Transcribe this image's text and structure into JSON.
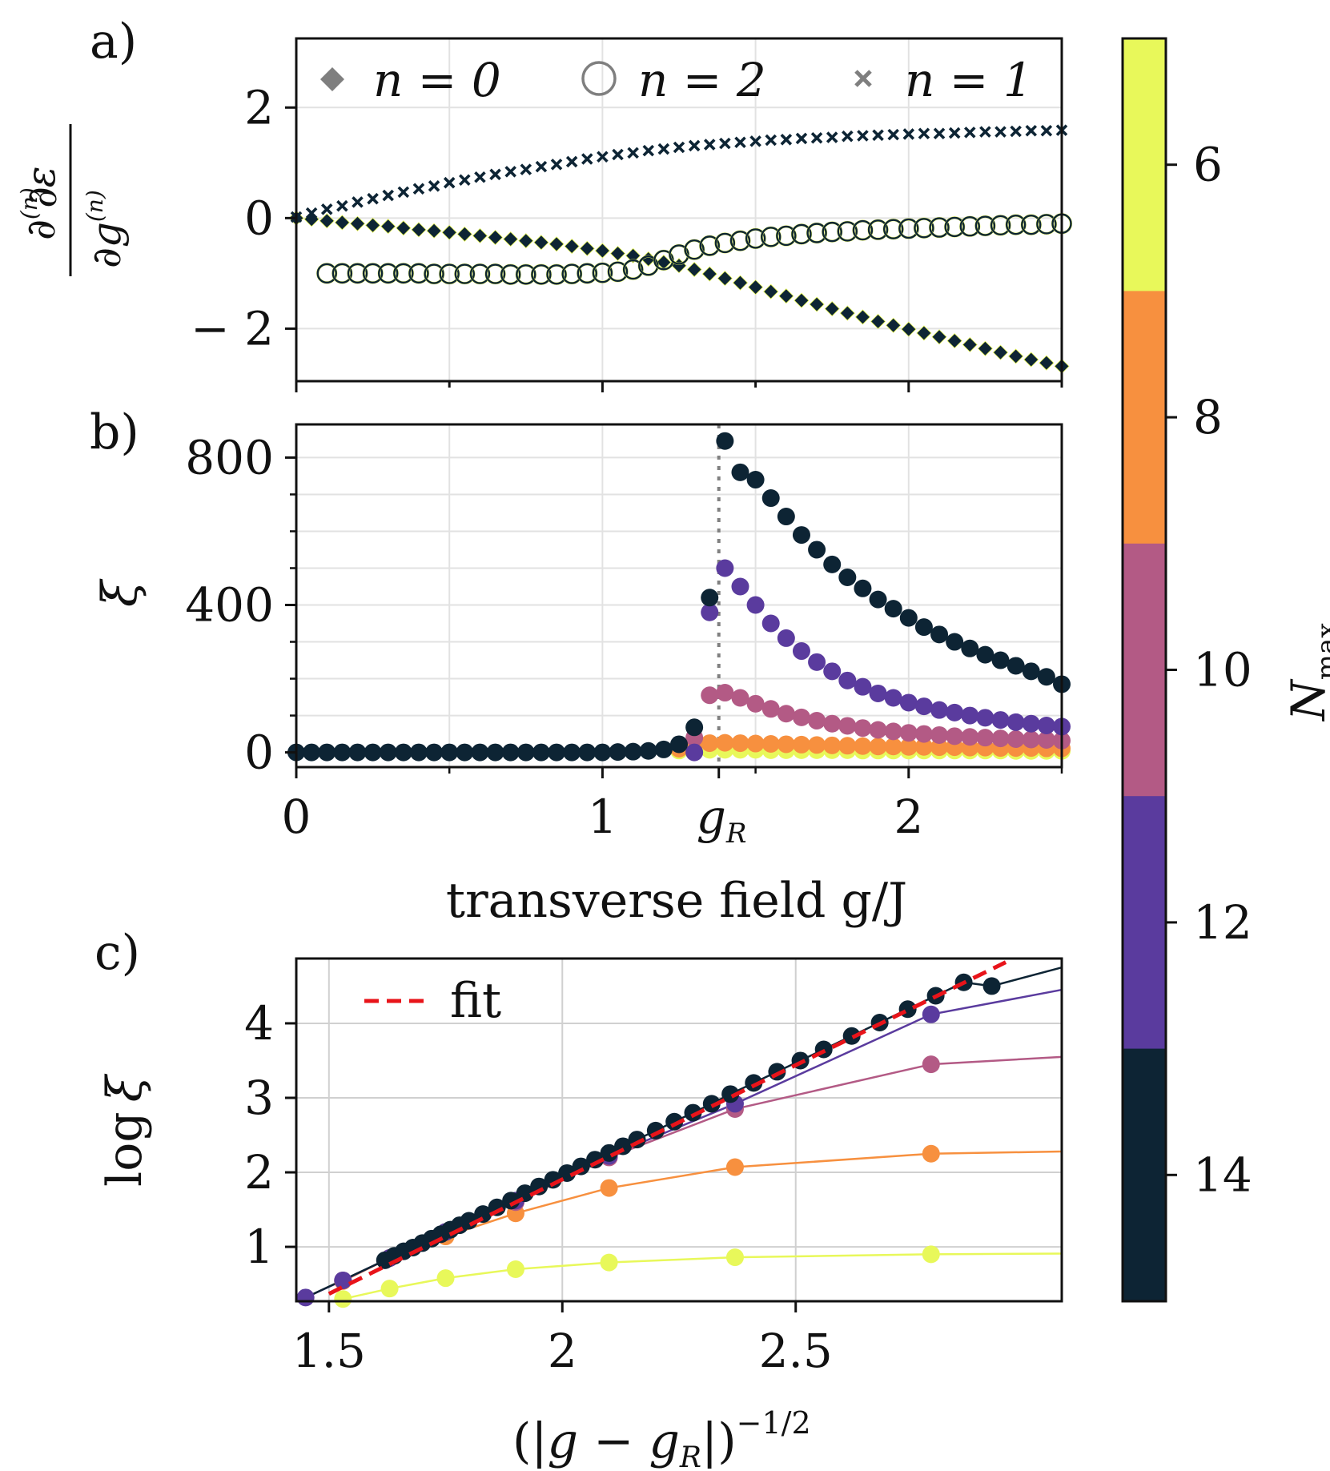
{
  "figure": {
    "panel_labels": [
      "a)",
      "b)",
      "c)"
    ],
    "colorbar": {
      "label": "N",
      "label_sub": "max",
      "ticks": [
        "6",
        "8",
        "10",
        "12",
        "14"
      ],
      "colors": [
        "#e8f85a",
        "#f7903f",
        "#b35a85",
        "#5a3b9e",
        "#0d2434"
      ]
    }
  },
  "chart_data": [
    {
      "type": "scatter",
      "panel": "a)",
      "ylabel": "∂⁽ⁿ⁾ε / ∂g⁽ⁿ⁾",
      "ylabel_parts": {
        "num_d": "∂",
        "num_n": "(n)",
        "num_e": "ε",
        "den_d": "∂g",
        "den_n": "(n)"
      },
      "xlim": [
        0,
        2.5
      ],
      "ylim": [
        -2.95,
        3.25
      ],
      "yticks": [
        -2,
        0,
        2
      ],
      "ytick_labels": [
        "− 2",
        "0",
        "2"
      ],
      "xticks_minor": [
        0.5,
        1.5,
        2.5
      ],
      "legend": [
        "n = 0",
        "n = 2",
        "n = 1"
      ],
      "legend_placement": "top",
      "grid": true,
      "series": [
        {
          "name": "n = 0",
          "marker": "diamond",
          "x": [
            0.0,
            0.05,
            0.1,
            0.15,
            0.2,
            0.25,
            0.3,
            0.35,
            0.4,
            0.45,
            0.5,
            0.55,
            0.6,
            0.65,
            0.7,
            0.75,
            0.8,
            0.85,
            0.9,
            0.95,
            1.0,
            1.05,
            1.1,
            1.15,
            1.2,
            1.25,
            1.3,
            1.35,
            1.4,
            1.45,
            1.5,
            1.55,
            1.6,
            1.65,
            1.7,
            1.75,
            1.8,
            1.85,
            1.9,
            1.95,
            2.0,
            2.05,
            2.1,
            2.15,
            2.2,
            2.25,
            2.3,
            2.35,
            2.4,
            2.45,
            2.5
          ],
          "y": [
            0.0,
            -0.02,
            -0.05,
            -0.08,
            -0.1,
            -0.13,
            -0.15,
            -0.18,
            -0.21,
            -0.23,
            -0.26,
            -0.29,
            -0.32,
            -0.35,
            -0.38,
            -0.41,
            -0.44,
            -0.47,
            -0.51,
            -0.55,
            -0.59,
            -0.64,
            -0.68,
            -0.74,
            -0.8,
            -0.86,
            -0.93,
            -1.01,
            -1.09,
            -1.17,
            -1.25,
            -1.33,
            -1.41,
            -1.49,
            -1.56,
            -1.64,
            -1.72,
            -1.79,
            -1.87,
            -1.94,
            -2.01,
            -2.08,
            -2.15,
            -2.22,
            -2.29,
            -2.36,
            -2.43,
            -2.5,
            -2.56,
            -2.62,
            -2.68
          ]
        },
        {
          "name": "n = 2",
          "marker": "circle",
          "x": [
            0.1,
            0.15,
            0.2,
            0.25,
            0.3,
            0.35,
            0.4,
            0.45,
            0.5,
            0.55,
            0.6,
            0.65,
            0.7,
            0.75,
            0.8,
            0.85,
            0.9,
            0.95,
            1.0,
            1.05,
            1.1,
            1.15,
            1.2,
            1.25,
            1.3,
            1.35,
            1.4,
            1.45,
            1.5,
            1.55,
            1.6,
            1.65,
            1.7,
            1.75,
            1.8,
            1.85,
            1.9,
            1.95,
            2.0,
            2.05,
            2.1,
            2.15,
            2.2,
            2.25,
            2.3,
            2.35,
            2.4,
            2.45,
            2.5
          ],
          "y": [
            -1.0,
            -1.0,
            -1.0,
            -1.0,
            -1.0,
            -1.0,
            -1.0,
            -1.01,
            -1.01,
            -1.01,
            -1.01,
            -1.01,
            -1.02,
            -1.02,
            -1.02,
            -1.02,
            -1.01,
            -1.0,
            -0.99,
            -0.97,
            -0.93,
            -0.86,
            -0.76,
            -0.66,
            -0.57,
            -0.5,
            -0.45,
            -0.41,
            -0.37,
            -0.34,
            -0.32,
            -0.29,
            -0.27,
            -0.25,
            -0.24,
            -0.22,
            -0.21,
            -0.2,
            -0.19,
            -0.18,
            -0.17,
            -0.16,
            -0.15,
            -0.14,
            -0.13,
            -0.12,
            -0.12,
            -0.11,
            -0.1
          ]
        },
        {
          "name": "n = 1",
          "marker": "x",
          "x": [
            0.0,
            0.05,
            0.1,
            0.15,
            0.2,
            0.25,
            0.3,
            0.35,
            0.4,
            0.45,
            0.5,
            0.55,
            0.6,
            0.65,
            0.7,
            0.75,
            0.8,
            0.85,
            0.9,
            0.95,
            1.0,
            1.05,
            1.1,
            1.15,
            1.2,
            1.25,
            1.3,
            1.35,
            1.4,
            1.45,
            1.5,
            1.55,
            1.6,
            1.65,
            1.7,
            1.75,
            1.8,
            1.85,
            1.9,
            1.95,
            2.0,
            2.05,
            2.1,
            2.15,
            2.2,
            2.25,
            2.3,
            2.35,
            2.4,
            2.45,
            2.5
          ],
          "y": [
            0.02,
            0.09,
            0.16,
            0.22,
            0.29,
            0.35,
            0.41,
            0.47,
            0.53,
            0.58,
            0.64,
            0.69,
            0.74,
            0.79,
            0.84,
            0.88,
            0.93,
            0.97,
            1.02,
            1.07,
            1.11,
            1.15,
            1.18,
            1.22,
            1.25,
            1.28,
            1.31,
            1.33,
            1.35,
            1.37,
            1.39,
            1.41,
            1.42,
            1.44,
            1.45,
            1.46,
            1.48,
            1.49,
            1.5,
            1.51,
            1.52,
            1.53,
            1.53,
            1.54,
            1.55,
            1.56,
            1.56,
            1.57,
            1.58,
            1.58,
            1.59
          ]
        }
      ]
    },
    {
      "type": "scatter",
      "panel": "b)",
      "ylabel": "ξ",
      "xlabel": "transverse field g/J",
      "xlim": [
        0,
        2.5
      ],
      "ylim": [
        -40,
        890
      ],
      "xticks": [
        0,
        1,
        1.38,
        2
      ],
      "xtick_labels": [
        "0",
        "1",
        "g_R",
        "2"
      ],
      "xtick_label_parts": {
        "gR_main": "g",
        "gR_sub": "R"
      },
      "xticks_minor": [
        0.5,
        1.5,
        2.5
      ],
      "yticks": [
        0,
        400,
        800
      ],
      "ytick_labels": [
        "0",
        "400",
        "800"
      ],
      "yticks_minor": [
        100,
        200,
        300,
        500,
        600,
        700
      ],
      "vline": 1.38,
      "grid": true,
      "series": [
        {
          "name": "14",
          "color": "#0d2434",
          "x": [
            0.0,
            0.05,
            0.1,
            0.15,
            0.2,
            0.25,
            0.3,
            0.35,
            0.4,
            0.45,
            0.5,
            0.55,
            0.6,
            0.65,
            0.7,
            0.75,
            0.8,
            0.85,
            0.9,
            0.95,
            1.0,
            1.05,
            1.1,
            1.15,
            1.2,
            1.25,
            1.3,
            1.35,
            1.4,
            1.45,
            1.5,
            1.55,
            1.6,
            1.65,
            1.7,
            1.75,
            1.8,
            1.85,
            1.9,
            1.95,
            2.0,
            2.05,
            2.1,
            2.15,
            2.2,
            2.25,
            2.3,
            2.35,
            2.4,
            2.45,
            2.5
          ],
          "y": [
            0,
            0,
            0,
            0,
            0,
            0,
            0,
            0,
            0,
            0,
            0,
            0,
            0,
            0,
            0,
            0,
            0,
            0,
            0,
            0,
            0,
            1,
            2,
            4,
            8,
            22,
            68,
            420,
            845,
            760,
            740,
            690,
            640,
            590,
            550,
            510,
            475,
            445,
            415,
            390,
            365,
            340,
            320,
            300,
            282,
            265,
            250,
            235,
            220,
            205,
            185
          ]
        },
        {
          "name": "12",
          "color": "#5a3b9e",
          "x": [
            1.3,
            1.35,
            1.4,
            1.45,
            1.5,
            1.55,
            1.6,
            1.65,
            1.7,
            1.75,
            1.8,
            1.85,
            1.9,
            1.95,
            2.0,
            2.05,
            2.1,
            2.15,
            2.2,
            2.25,
            2.3,
            2.35,
            2.4,
            2.45,
            2.5
          ],
          "y": [
            0,
            380,
            500,
            450,
            400,
            350,
            310,
            275,
            245,
            220,
            195,
            178,
            160,
            148,
            135,
            125,
            115,
            108,
            100,
            94,
            88,
            82,
            78,
            73,
            70
          ]
        },
        {
          "name": "10",
          "color": "#b35a85",
          "x": [
            1.3,
            1.35,
            1.4,
            1.45,
            1.5,
            1.55,
            1.6,
            1.65,
            1.7,
            1.75,
            1.8,
            1.85,
            1.9,
            1.95,
            2.0,
            2.05,
            2.1,
            2.15,
            2.2,
            2.25,
            2.3,
            2.35,
            2.4,
            2.45,
            2.5
          ],
          "y": [
            40,
            155,
            162,
            148,
            132,
            118,
            105,
            95,
            86,
            78,
            72,
            66,
            61,
            57,
            53,
            50,
            47,
            44,
            42,
            40,
            38,
            36,
            35,
            34,
            32
          ]
        },
        {
          "name": "8",
          "color": "#f7903f",
          "x": [
            1.25,
            1.3,
            1.35,
            1.4,
            1.45,
            1.5,
            1.55,
            1.6,
            1.65,
            1.7,
            1.75,
            1.8,
            1.85,
            1.9,
            1.95,
            2.0,
            2.05,
            2.1,
            2.15,
            2.2,
            2.25,
            2.3,
            2.35,
            2.4,
            2.45,
            2.5
          ],
          "y": [
            10,
            22,
            25,
            26,
            25,
            24,
            23,
            22,
            21,
            20,
            19,
            18,
            17,
            16,
            16,
            15,
            15,
            14,
            14,
            13,
            13,
            12,
            12,
            12,
            11,
            11
          ]
        },
        {
          "name": "6",
          "color": "#e8f85a",
          "x": [
            1.25,
            1.3,
            1.35,
            1.4,
            1.45,
            1.5,
            1.55,
            1.6,
            1.65,
            1.7,
            1.75,
            1.8,
            1.85,
            1.9,
            1.95,
            2.0,
            2.05,
            2.1,
            2.15,
            2.2,
            2.25,
            2.3,
            2.35,
            2.4,
            2.45,
            2.5
          ],
          "y": [
            5,
            6,
            7,
            7,
            7,
            7,
            6,
            6,
            6,
            6,
            6,
            6,
            5,
            5,
            5,
            5,
            5,
            5,
            5,
            5,
            5,
            5,
            4,
            4,
            4,
            4
          ]
        }
      ]
    },
    {
      "type": "line",
      "panel": "c)",
      "xlabel": "(|g − g_R|)^−1/2",
      "xlabel_parts": {
        "open": "(|",
        "g": "g",
        "minus": " − ",
        "gR": "g",
        "sub": "R",
        "close": "|)",
        "sup": "−1/2"
      },
      "ylabel": "log ξ",
      "ylabel_parts": {
        "log": "log",
        "xi": "ξ"
      },
      "xlim": [
        1.43,
        3.07
      ],
      "ylim": [
        0.27,
        4.87
      ],
      "xticks": [
        1.5,
        2,
        2.5
      ],
      "xtick_labels": [
        "1.5",
        "2",
        "2.5"
      ],
      "yticks": [
        1,
        2,
        3,
        4
      ],
      "ytick_labels": [
        "1",
        "2",
        "3",
        "4"
      ],
      "legend": [
        "fit"
      ],
      "legend_placement": "top-left",
      "grid": true,
      "fit": {
        "x": [
          1.5,
          2.95
        ],
        "y": [
          0.37,
          4.82
        ],
        "color": "#e8141a"
      },
      "series": [
        {
          "name": "6",
          "color": "#e8f85a",
          "x": [
            1.53,
            1.63,
            1.75,
            1.9,
            2.1,
            2.37,
            2.79,
            3.07
          ],
          "y": [
            0.3,
            0.44,
            0.58,
            0.7,
            0.79,
            0.86,
            0.9,
            0.91
          ]
        },
        {
          "name": "8",
          "color": "#f7903f",
          "x": [
            1.53,
            1.63,
            1.75,
            1.9,
            2.1,
            2.37,
            2.79,
            3.07
          ],
          "y": [
            0.54,
            0.85,
            1.14,
            1.45,
            1.79,
            2.07,
            2.25,
            2.28
          ]
        },
        {
          "name": "10",
          "color": "#b35a85",
          "x": [
            1.53,
            1.63,
            1.75,
            1.9,
            2.1,
            2.37,
            2.79,
            3.07
          ],
          "y": [
            0.55,
            0.85,
            1.2,
            1.6,
            2.2,
            2.85,
            3.45,
            3.55
          ]
        },
        {
          "name": "12",
          "color": "#5a3b9e",
          "x": [
            1.45,
            1.53,
            1.63,
            1.75,
            1.9,
            2.1,
            2.37,
            2.79,
            3.07
          ],
          "y": [
            0.32,
            0.55,
            0.85,
            1.2,
            1.62,
            2.22,
            2.92,
            4.12,
            4.45
          ]
        },
        {
          "name": "14",
          "color": "#0d2434",
          "dots_from_x": 1.62,
          "x": [
            1.45,
            1.62,
            1.64,
            1.66,
            1.68,
            1.7,
            1.72,
            1.74,
            1.76,
            1.78,
            1.8,
            1.83,
            1.86,
            1.89,
            1.92,
            1.95,
            1.98,
            2.01,
            2.04,
            2.07,
            2.1,
            2.13,
            2.16,
            2.2,
            2.24,
            2.28,
            2.32,
            2.36,
            2.41,
            2.46,
            2.51,
            2.56,
            2.62,
            2.68,
            2.74,
            2.8,
            2.86,
            2.92,
            3.07
          ],
          "y": [
            0.32,
            0.82,
            0.88,
            0.94,
            0.99,
            1.05,
            1.11,
            1.17,
            1.23,
            1.29,
            1.35,
            1.44,
            1.53,
            1.62,
            1.72,
            1.81,
            1.9,
            1.99,
            2.08,
            2.17,
            2.26,
            2.35,
            2.44,
            2.56,
            2.68,
            2.8,
            2.92,
            3.05,
            3.2,
            3.35,
            3.5,
            3.65,
            3.83,
            4.01,
            4.19,
            4.37,
            4.55,
            4.5,
            4.75
          ]
        }
      ]
    }
  ]
}
